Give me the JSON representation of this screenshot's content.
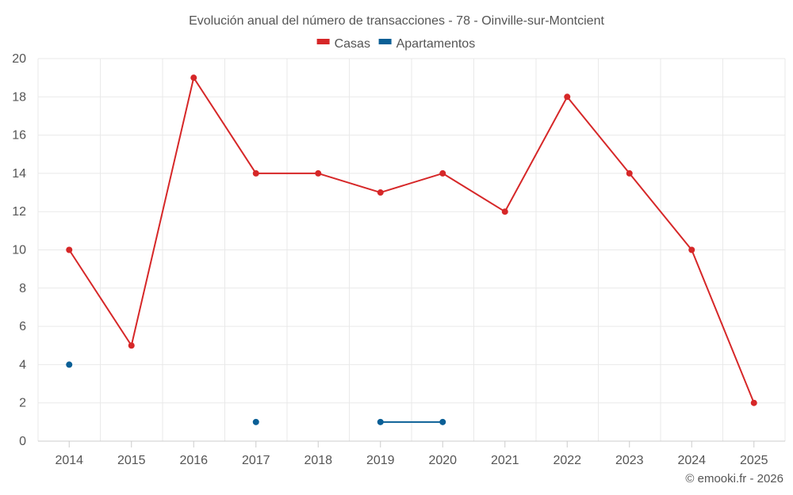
{
  "chart_data": {
    "type": "line",
    "title": "Evolución anual del número de transacciones - 78 - Oinville-sur-Montcient",
    "categories": [
      "2014",
      "2015",
      "2016",
      "2017",
      "2018",
      "2019",
      "2020",
      "2021",
      "2022",
      "2023",
      "2024",
      "2025"
    ],
    "series": [
      {
        "name": "Casas",
        "color": "#d62728",
        "values": [
          10,
          5,
          19,
          14,
          14,
          13,
          14,
          12,
          18,
          14,
          10,
          2
        ]
      },
      {
        "name": "Apartamentos",
        "color": "#0a5f96",
        "values": [
          4,
          null,
          null,
          1,
          null,
          1,
          1,
          null,
          null,
          null,
          null,
          null
        ]
      }
    ],
    "ylim": [
      0,
      20
    ],
    "yticks": [
      0,
      2,
      4,
      6,
      8,
      10,
      12,
      14,
      16,
      18,
      20
    ],
    "xlabel": "",
    "ylabel": "",
    "grid": true,
    "legend": "top-center"
  },
  "credit": "© emooki.fr - 2026"
}
